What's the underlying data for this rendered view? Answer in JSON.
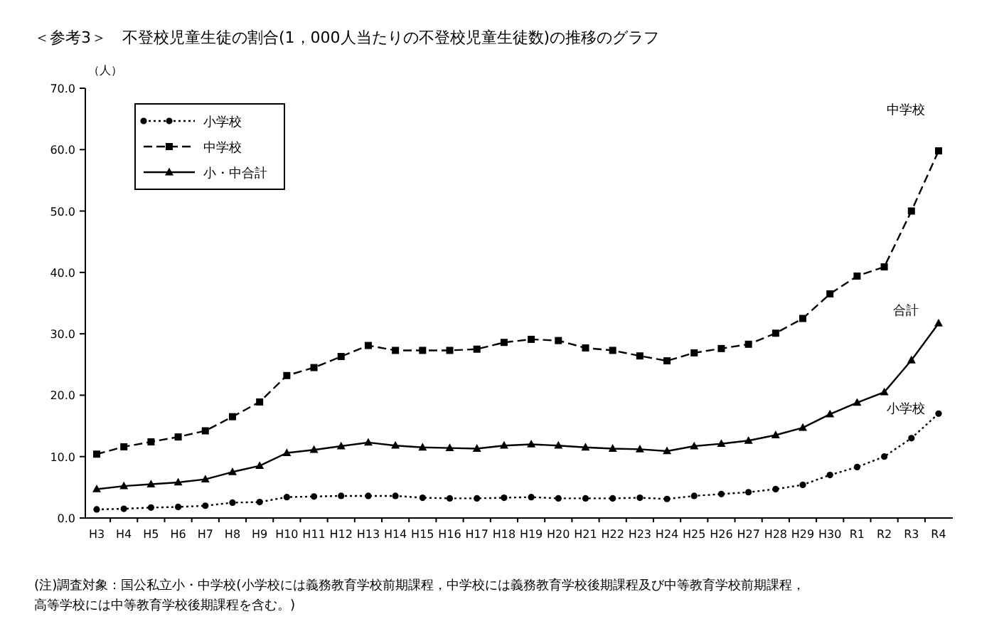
{
  "chart_data": {
    "type": "line",
    "title": "＜参考3＞　不登校児童生徒の割合(1，000人当たりの不登校児童生徒数)の推移のグラフ",
    "ylabel": "（人）",
    "categories": [
      "H3",
      "H4",
      "H5",
      "H6",
      "H7",
      "H8",
      "H9",
      "H10",
      "H11",
      "H12",
      "H13",
      "H14",
      "H15",
      "H16",
      "H17",
      "H18",
      "H19",
      "H20",
      "H21",
      "H22",
      "H23",
      "H24",
      "H25",
      "H26",
      "H27",
      "H28",
      "H29",
      "H30",
      "R1",
      "R2",
      "R3",
      "R4"
    ],
    "series": [
      {
        "name": "小学校",
        "color": "#000000",
        "marker": "circle",
        "line_style": "dotted",
        "values": [
          1.4,
          1.5,
          1.7,
          1.8,
          2.0,
          2.5,
          2.6,
          3.4,
          3.5,
          3.6,
          3.6,
          3.6,
          3.3,
          3.2,
          3.2,
          3.3,
          3.4,
          3.2,
          3.2,
          3.2,
          3.3,
          3.1,
          3.6,
          3.9,
          4.2,
          4.7,
          5.4,
          7.0,
          8.3,
          10.0,
          13.0,
          17.0
        ]
      },
      {
        "name": "中学校",
        "color": "#000000",
        "marker": "square",
        "line_style": "dashed",
        "values": [
          10.4,
          11.6,
          12.4,
          13.2,
          14.2,
          16.5,
          18.9,
          23.2,
          24.5,
          26.3,
          28.1,
          27.3,
          27.3,
          27.3,
          27.5,
          28.6,
          29.1,
          28.9,
          27.7,
          27.3,
          26.4,
          25.6,
          26.9,
          27.6,
          28.3,
          30.1,
          32.5,
          36.5,
          39.4,
          40.9,
          50.0,
          59.8
        ]
      },
      {
        "name": "小・中合計",
        "color": "#000000",
        "marker": "triangle",
        "line_style": "solid",
        "values": [
          4.7,
          5.2,
          5.5,
          5.8,
          6.3,
          7.5,
          8.5,
          10.6,
          11.1,
          11.7,
          12.3,
          11.8,
          11.5,
          11.4,
          11.3,
          11.8,
          12.0,
          11.8,
          11.5,
          11.3,
          11.2,
          10.9,
          11.7,
          12.1,
          12.6,
          13.5,
          14.7,
          16.9,
          18.8,
          20.5,
          25.7,
          31.7
        ]
      }
    ],
    "ylim": [
      0,
      70
    ],
    "yticks": [
      {
        "value": 0,
        "label": "0.0"
      },
      {
        "value": 10,
        "label": "10.0"
      },
      {
        "value": 20,
        "label": "20.0"
      },
      {
        "value": 30,
        "label": "30.0"
      },
      {
        "value": 40,
        "label": "40.0"
      },
      {
        "value": 50,
        "label": "50.0"
      },
      {
        "value": 60,
        "label": "60.0"
      },
      {
        "value": 70,
        "label": "70.0"
      }
    ],
    "legend": "top left",
    "annotations": [
      "中学校",
      "合計",
      "小学校",
      "(注)調査対象：国公私立小・中学校(小学校には義務教育学校前期課程，中学校には義務教育学校後期課程及び中等教育学校前期課程，",
      "高等学校には中等教育学校後期課程を含む。)"
    ]
  }
}
